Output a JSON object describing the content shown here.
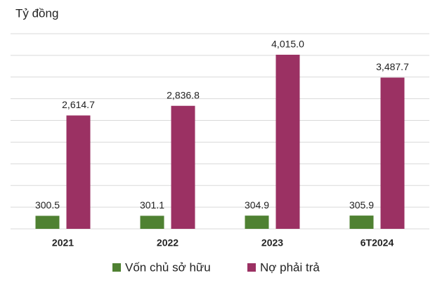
{
  "chart_data": {
    "type": "bar",
    "y_label": "Tỷ đồng",
    "categories": [
      "2021",
      "2022",
      "2023",
      "6T2024"
    ],
    "series": [
      {
        "name": "Vốn chủ sở hữu",
        "color": "#4f8132",
        "values": [
          300.5,
          301.1,
          304.9,
          305.9
        ],
        "value_labels": [
          "300.5",
          "301.1",
          "304.9",
          "305.9"
        ]
      },
      {
        "name": "Nợ phải trả",
        "color": "#9b3163",
        "values": [
          2614.7,
          2836.8,
          4015.0,
          3487.7
        ],
        "value_labels": [
          "2,614.7",
          "2,836.8",
          "4,015.0",
          "3,487.7"
        ]
      }
    ],
    "ylim": [
      0,
      4500
    ],
    "yticks": [
      0,
      500,
      1000,
      1500,
      2000,
      2500,
      3000,
      3500,
      4000,
      4500
    ],
    "grid": true
  }
}
